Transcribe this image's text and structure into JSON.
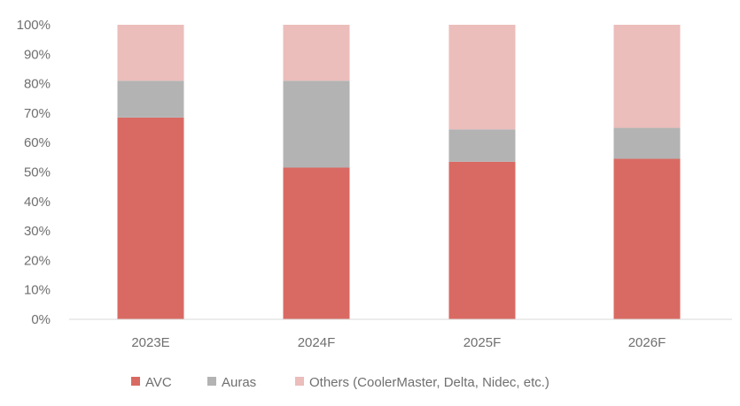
{
  "chart_data": {
    "type": "bar",
    "stacked": true,
    "categories": [
      "2023E",
      "2024F",
      "2025F",
      "2026F"
    ],
    "series": [
      {
        "name": "AVC",
        "values": [
          68.5,
          51.5,
          53.5,
          54.5
        ],
        "color": "#d96a63"
      },
      {
        "name": "Auras",
        "values": [
          12.5,
          29.5,
          11.0,
          10.5
        ],
        "color": "#b3b3b3"
      },
      {
        "name": "Others (CoolerMaster, Delta, Nidec, etc.)",
        "values": [
          19.0,
          19.0,
          35.5,
          35.0
        ],
        "color": "#ebbdbb"
      }
    ],
    "yticks": [
      "0%",
      "10%",
      "20%",
      "30%",
      "40%",
      "50%",
      "60%",
      "70%",
      "80%",
      "90%",
      "100%"
    ],
    "ylim": [
      0,
      100
    ],
    "title": "",
    "xlabel": "",
    "ylabel": "",
    "grid": false,
    "legend": "bottom"
  }
}
